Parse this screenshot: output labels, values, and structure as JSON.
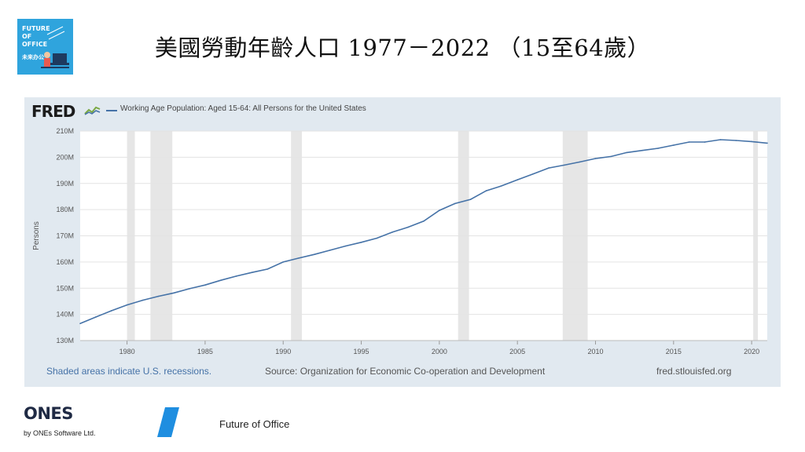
{
  "logo": {
    "line1": "FUTURE",
    "line2": "OF",
    "line3": "OFFICE",
    "line4": "未来办公"
  },
  "slide_title": "美國勞動年齡人口 1977－2022 （15至64歲）",
  "fred": {
    "brand": "FRED",
    "legend": "Working Age Population: Aged 15-64: All Persons for the United States",
    "recession_note": "Shaded areas indicate U.S. recessions.",
    "source": "Source: Organization for Economic Co-operation and Development",
    "site": "fred.stlouisfed.org"
  },
  "footer": {
    "ones_logo": "ONES",
    "ones_sub": "by ONEs Software Ltd.",
    "tagline": "Future of Office"
  },
  "colors": {
    "series": "#4572a7",
    "panel_bg": "#e1e9f0",
    "recession": "#e6e6e6",
    "logo_bg": "#2fa4dd",
    "slash": "#1f8ee0"
  },
  "chart_data": {
    "type": "line",
    "ylabel": "Persons",
    "xlim": [
      1977,
      2021
    ],
    "ylim": [
      130,
      210
    ],
    "y_ticks": [
      130,
      140,
      150,
      160,
      170,
      180,
      190,
      200,
      210
    ],
    "y_tick_labels": [
      "130M",
      "140M",
      "150M",
      "160M",
      "170M",
      "180M",
      "190M",
      "200M",
      "210M"
    ],
    "x_ticks": [
      1980,
      1985,
      1990,
      1995,
      2000,
      2005,
      2010,
      2015,
      2020
    ],
    "x_tick_labels": [
      "1980",
      "1985",
      "1990",
      "1995",
      "2000",
      "2005",
      "2010",
      "2015",
      "2020"
    ],
    "grid": true,
    "legend": "top-left",
    "recessions": [
      [
        1980.0,
        1980.5
      ],
      [
        1981.5,
        1982.9
      ],
      [
        1990.5,
        1991.2
      ],
      [
        2001.2,
        2001.9
      ],
      [
        2007.9,
        2009.5
      ],
      [
        2020.1,
        2020.4
      ]
    ],
    "series": [
      {
        "name": "Working Age Population: Aged 15-64: All Persons for the United States",
        "x": [
          1977,
          1978,
          1979,
          1980,
          1981,
          1982,
          1983,
          1984,
          1985,
          1986,
          1987,
          1988,
          1989,
          1990,
          1991,
          1992,
          1993,
          1994,
          1995,
          1996,
          1997,
          1998,
          1999,
          2000,
          2001,
          2002,
          2003,
          2004,
          2005,
          2006,
          2007,
          2008,
          2009,
          2010,
          2011,
          2012,
          2013,
          2014,
          2015,
          2016,
          2017,
          2018,
          2019,
          2020,
          2021
        ],
        "values": [
          136.5,
          139.0,
          141.4,
          143.6,
          145.4,
          146.9,
          148.2,
          149.8,
          151.2,
          153.0,
          154.6,
          156.0,
          157.3,
          160.0,
          161.5,
          162.9,
          164.5,
          166.1,
          167.5,
          169.1,
          171.4,
          173.3,
          175.6,
          179.7,
          182.3,
          183.9,
          187.2,
          189.1,
          191.4,
          193.6,
          195.9,
          197.0,
          198.2,
          199.5,
          200.3,
          201.8,
          202.6,
          203.4,
          204.6,
          205.8,
          205.8,
          206.7,
          206.4,
          206.0,
          205.4
        ]
      }
    ]
  }
}
